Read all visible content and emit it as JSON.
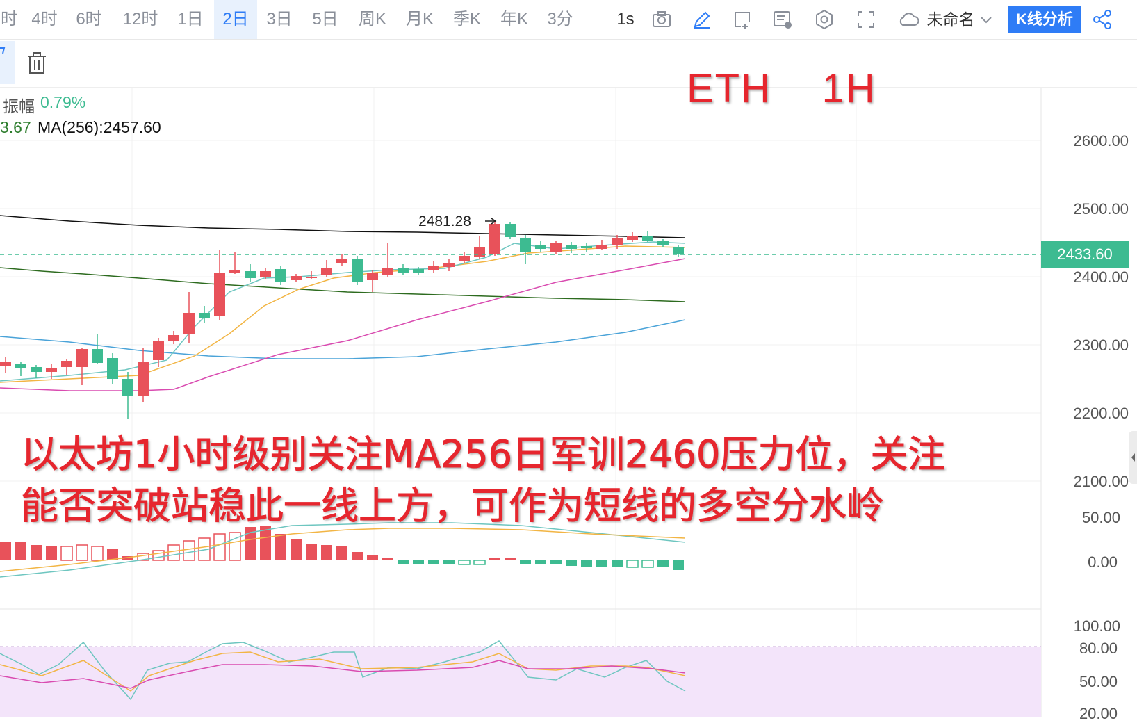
{
  "toolbar": {
    "timeframes": [
      "时",
      "4时",
      "6时",
      "12时",
      "1日",
      "2日",
      "3日",
      "5日",
      "周K",
      "月K",
      "季K",
      "年K",
      "3分"
    ],
    "active_timeframe": "2日",
    "interval_label": "1s",
    "layout_name": "未命名",
    "kline_button": "K线分析"
  },
  "legend": {
    "amplitude_label": "振幅",
    "amplitude_value": "0.79%",
    "ma_partial": "3.67",
    "ma256": "MA(256):2457.60"
  },
  "overlay": {
    "symbol": "ETH",
    "timeframe": "1H",
    "line1": "以太坊1小时级别关注MA256日军训2460压力位，关注",
    "line2": "能否突破站稳此一线上方，可作为短线的多空分水岭"
  },
  "price_axis": {
    "labels": [
      "2600.00",
      "2500.00",
      "2400.00",
      "2300.00",
      "2200.00",
      "2100.00"
    ],
    "current_price": "2433.60",
    "high_marker": "2481.28"
  },
  "macd_axis": {
    "labels": [
      "50.00",
      "0.00"
    ]
  },
  "rsi_axis": {
    "labels": [
      "100.00",
      "80.00",
      "50.00",
      "20.00"
    ]
  },
  "colors": {
    "up": "#e8525a",
    "down": "#3dbb91",
    "accent": "#2e7cf6",
    "overlay_text": "#e6262e"
  }
}
